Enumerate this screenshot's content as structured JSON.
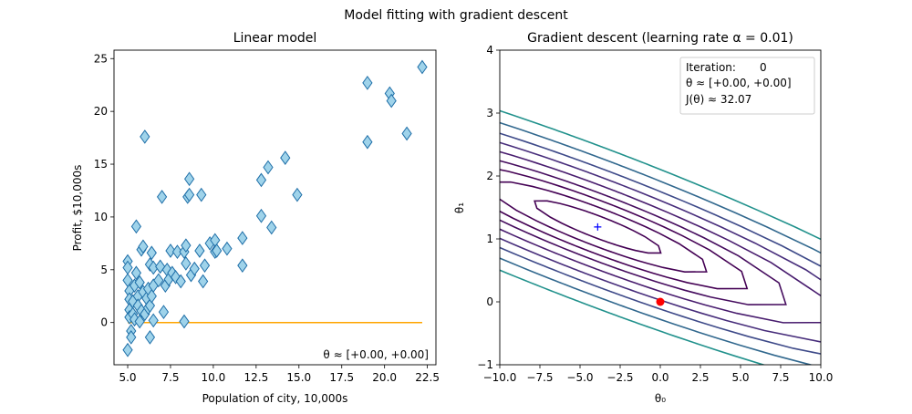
{
  "figure": {
    "title": "Model fitting with gradient descent"
  },
  "chart_data": [
    {
      "type": "scatter",
      "title": "Linear model",
      "xlabel": "Population of city, 10,000s",
      "ylabel": "Profit, $10,000s",
      "xlim": [
        4.2,
        23.0
      ],
      "ylim": [
        -4.0,
        25.8
      ],
      "xticks": [
        5.0,
        7.5,
        10.0,
        12.5,
        15.0,
        17.5,
        20.0,
        22.5
      ],
      "xtick_labels": [
        "5.0",
        "7.5",
        "10.0",
        "12.5",
        "15.0",
        "17.5",
        "20.0",
        "22.5"
      ],
      "yticks": [
        0,
        5,
        10,
        15,
        20,
        25
      ],
      "ytick_labels": [
        "0",
        "5",
        "10",
        "15",
        "20",
        "25"
      ],
      "marker": "diamond",
      "marker_fill": "#9fd3ea",
      "marker_edge": "#1f6fa8",
      "line_color": "#ffa500",
      "annotation": "θ ≈ [+0.00, +0.00]",
      "fit_line": {
        "x": [
          5.0,
          22.2
        ],
        "y": [
          0.0,
          0.0
        ]
      },
      "points": [
        [
          5.0,
          -2.6
        ],
        [
          5.0,
          5.8
        ],
        [
          5.0,
          5.2
        ],
        [
          5.0,
          4.0
        ],
        [
          5.1,
          3.0
        ],
        [
          5.1,
          2.2
        ],
        [
          5.1,
          1.2
        ],
        [
          5.1,
          0.5
        ],
        [
          5.2,
          -0.8
        ],
        [
          5.2,
          -1.4
        ],
        [
          5.3,
          2.0
        ],
        [
          5.3,
          0.8
        ],
        [
          5.4,
          3.5
        ],
        [
          5.4,
          0.3
        ],
        [
          5.5,
          9.1
        ],
        [
          5.5,
          4.7
        ],
        [
          5.6,
          2.5
        ],
        [
          5.6,
          1.6
        ],
        [
          5.7,
          3.8
        ],
        [
          5.7,
          0.1
        ],
        [
          5.8,
          6.9
        ],
        [
          5.8,
          1.1
        ],
        [
          5.9,
          7.2
        ],
        [
          5.9,
          2.9
        ],
        [
          6.0,
          17.6
        ],
        [
          6.0,
          0.8
        ],
        [
          6.1,
          2.3
        ],
        [
          6.2,
          3.2
        ],
        [
          6.2,
          1.4
        ],
        [
          6.3,
          5.5
        ],
        [
          6.3,
          1.6
        ],
        [
          6.3,
          -1.4
        ],
        [
          6.4,
          6.6
        ],
        [
          6.4,
          2.5
        ],
        [
          6.5,
          5.2
        ],
        [
          6.5,
          3.5
        ],
        [
          6.5,
          0.2
        ],
        [
          6.8,
          4.0
        ],
        [
          6.9,
          5.3
        ],
        [
          7.0,
          11.9
        ],
        [
          7.1,
          1.0
        ],
        [
          7.2,
          3.5
        ],
        [
          7.3,
          5.0
        ],
        [
          7.4,
          4.1
        ],
        [
          7.5,
          6.8
        ],
        [
          7.6,
          4.7
        ],
        [
          7.8,
          4.3
        ],
        [
          7.9,
          6.7
        ],
        [
          8.1,
          3.9
        ],
        [
          8.3,
          6.7
        ],
        [
          8.3,
          0.1
        ],
        [
          8.4,
          5.6
        ],
        [
          8.4,
          7.3
        ],
        [
          8.5,
          11.9
        ],
        [
          8.6,
          13.6
        ],
        [
          8.6,
          12.1
        ],
        [
          8.7,
          4.5
        ],
        [
          8.9,
          5.1
        ],
        [
          9.2,
          6.8
        ],
        [
          9.3,
          12.1
        ],
        [
          9.4,
          3.9
        ],
        [
          9.5,
          5.4
        ],
        [
          9.8,
          7.5
        ],
        [
          10.1,
          7.8
        ],
        [
          10.1,
          6.7
        ],
        [
          10.2,
          6.8
        ],
        [
          10.8,
          7.0
        ],
        [
          11.7,
          8.0
        ],
        [
          11.7,
          5.4
        ],
        [
          12.8,
          13.5
        ],
        [
          12.8,
          10.1
        ],
        [
          13.2,
          14.7
        ],
        [
          13.4,
          9.0
        ],
        [
          14.2,
          15.6
        ],
        [
          14.9,
          12.1
        ],
        [
          19.0,
          22.7
        ],
        [
          19.0,
          17.1
        ],
        [
          20.3,
          21.7
        ],
        [
          20.4,
          21.0
        ],
        [
          21.3,
          17.9
        ],
        [
          22.2,
          24.2
        ]
      ]
    },
    {
      "type": "contour",
      "title": "Gradient descent (learning rate α = 0.01)",
      "xlabel": "θ₀",
      "ylabel": "θ₁",
      "xlim": [
        -10,
        10
      ],
      "ylim": [
        -1,
        4
      ],
      "xticks": [
        -10.0,
        -7.5,
        -5.0,
        -2.5,
        0.0,
        2.5,
        5.0,
        7.5,
        10.0
      ],
      "xtick_labels": [
        "−10.0",
        "−7.5",
        "−5.0",
        "−2.5",
        "0.0",
        "2.5",
        "5.0",
        "7.5",
        "10.0"
      ],
      "yticks": [
        -1,
        0,
        1,
        2,
        3,
        4
      ],
      "ytick_labels": [
        "−1",
        "0",
        "1",
        "2",
        "3",
        "4"
      ],
      "minimum": [
        -3.9,
        1.19
      ],
      "minimum_color": "#0000ff",
      "current_point": [
        0.0,
        0.0
      ],
      "current_color": "#ff0000",
      "contour_levels": [
        6,
        9,
        13,
        18,
        25,
        34,
        45,
        60,
        80
      ],
      "contour_colors": [
        "#440154",
        "#440154",
        "#440154",
        "#450c5e",
        "#481c6e",
        "#472d7b",
        "#3e4a89",
        "#31688e",
        "#21918c"
      ],
      "info": {
        "iteration_label": "Iteration:",
        "iteration_value": "0",
        "theta_text": "θ ≈ [+0.00, +0.00]",
        "cost_text": "J(θ) ≈ 32.07"
      }
    }
  ]
}
